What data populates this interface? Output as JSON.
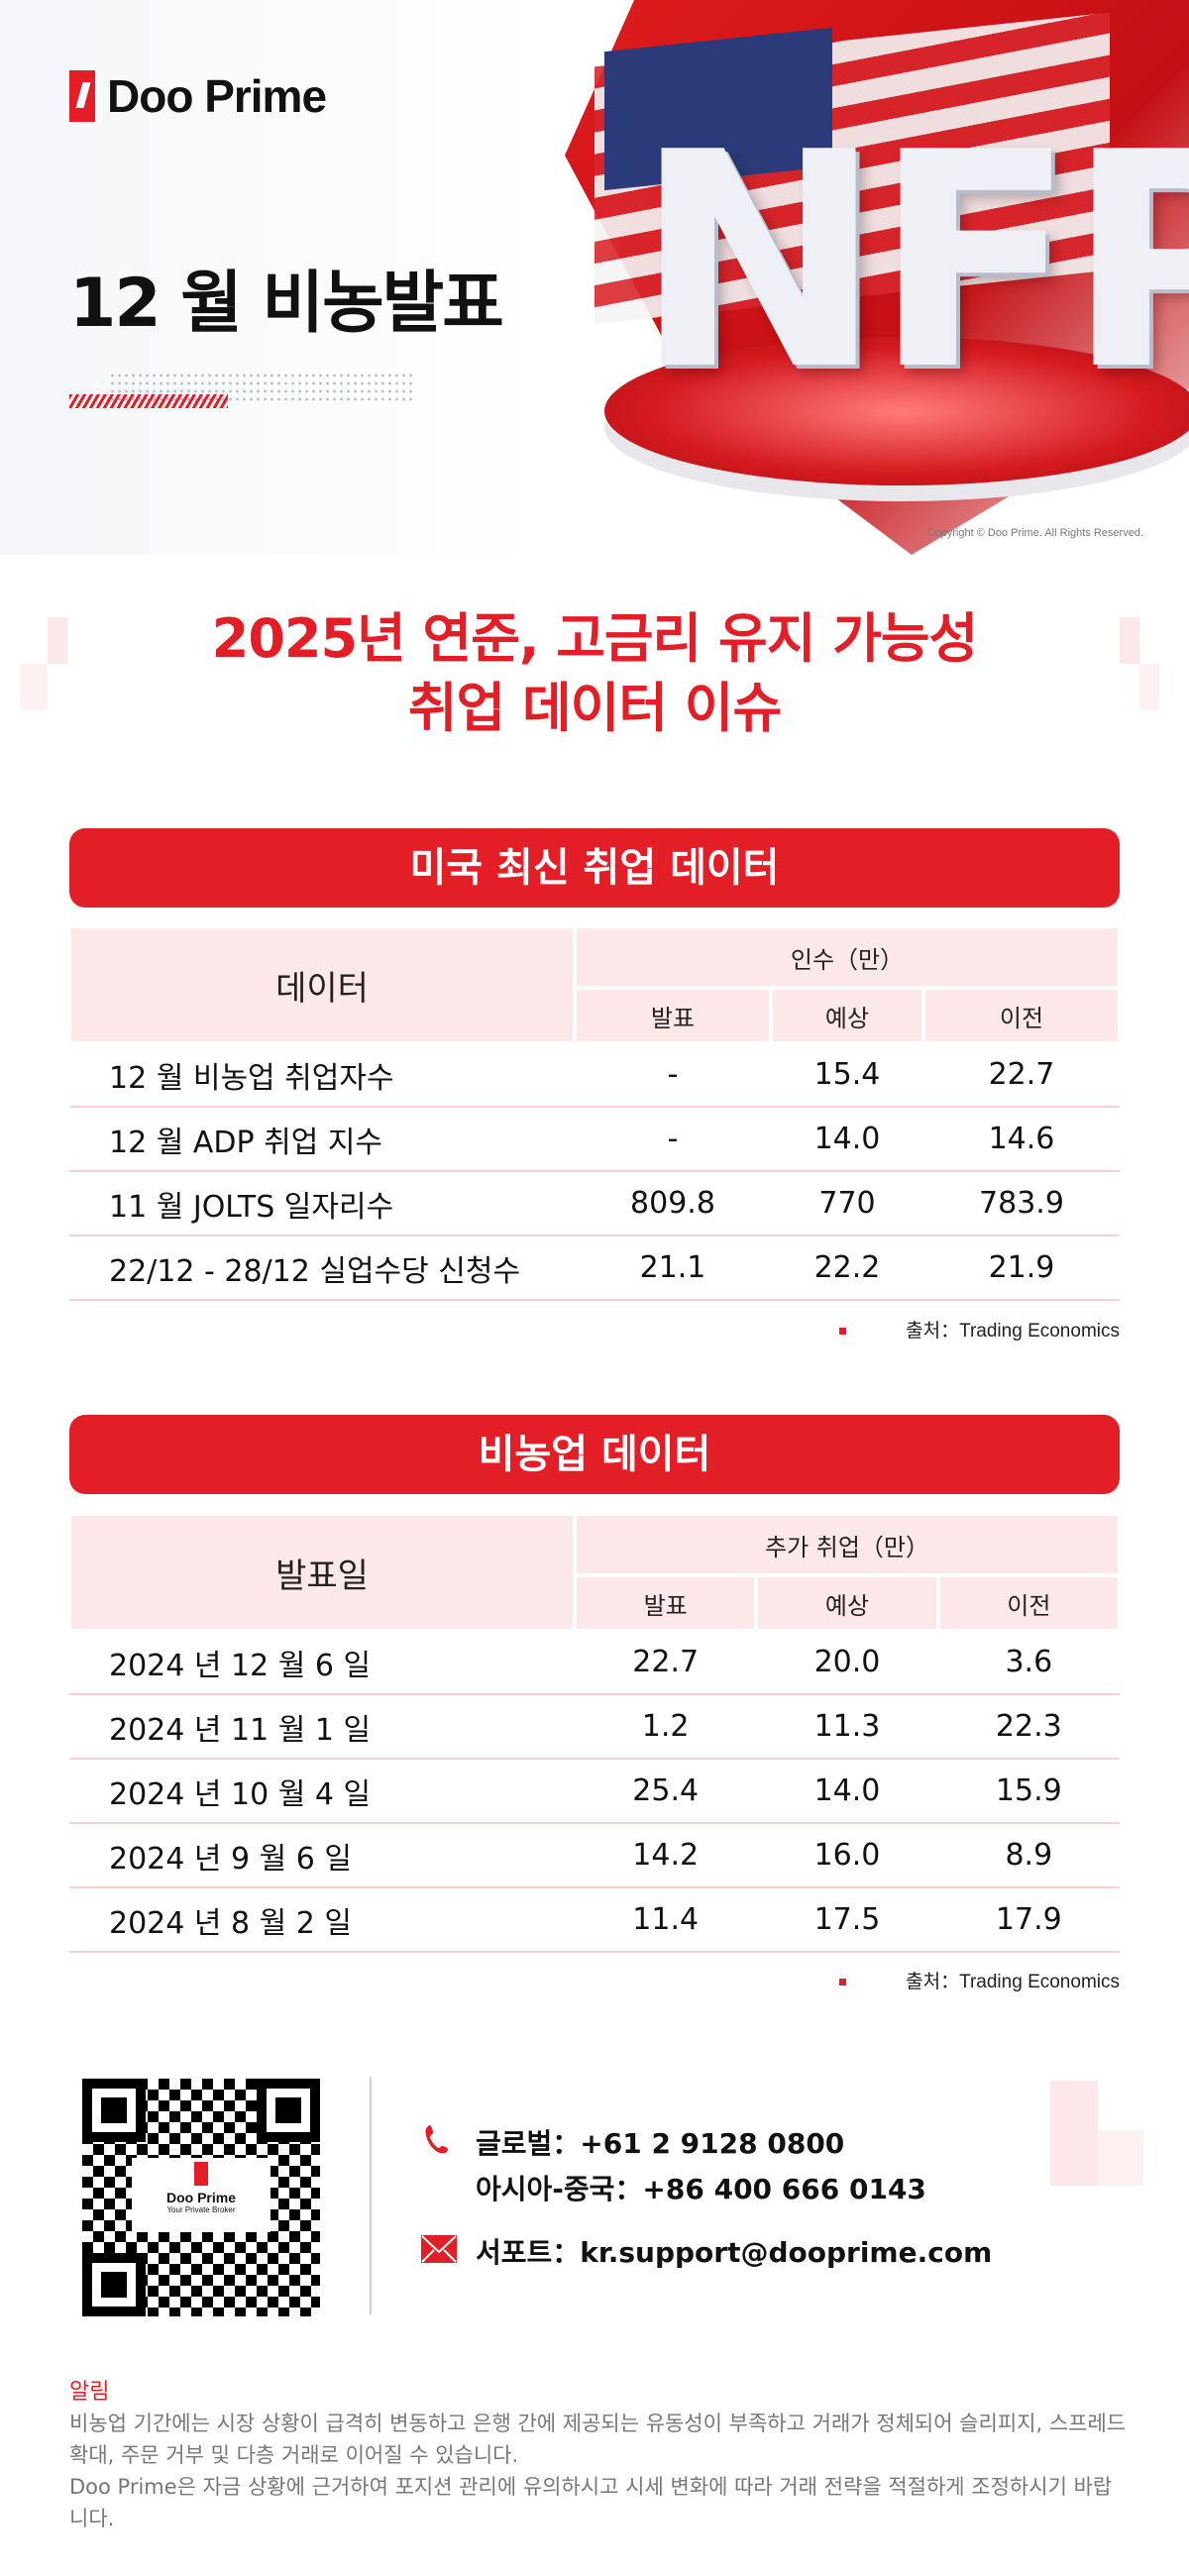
{
  "header": {
    "brand": "Doo Prime",
    "title": "12 월 비농발표",
    "hero_text": "NFP",
    "copyright": "Copyright © Doo Prime. All Rights Reserved."
  },
  "headline": {
    "line1": "2025년 연준, 고금리 유지 가능성",
    "line2": "취업 데이터 이슈"
  },
  "section1": {
    "title": "미국 최신 취업 데이터",
    "col_label": "데이터",
    "group_label": "인수（만）",
    "subcols": [
      "발표",
      "예상",
      "이전"
    ],
    "rows": [
      {
        "label": "12 월 비농업 취업자수",
        "values": [
          "-",
          "15.4",
          "22.7"
        ]
      },
      {
        "label": "12 월 ADP 취업 지수",
        "values": [
          "-",
          "14.0",
          "14.6"
        ]
      },
      {
        "label": "11 월 JOLTS 일자리수",
        "values": [
          "809.8",
          "770",
          "783.9"
        ]
      },
      {
        "label": "22/12 - 28/12 실업수당 신청수",
        "values": [
          "21.1",
          "22.2",
          "21.9"
        ]
      }
    ],
    "source": "출처：Trading Economics"
  },
  "section2": {
    "title": "비농업 데이터",
    "col_label": "발표일",
    "group_label": "추가 취업（만）",
    "subcols": [
      "발표",
      "예상",
      "이전"
    ],
    "rows": [
      {
        "label": "2024 년 12 월 6 일",
        "values": [
          "22.7",
          "20.0",
          "3.6"
        ]
      },
      {
        "label": "2024 년 11 월 1 일",
        "values": [
          "1.2",
          "11.3",
          "22.3"
        ]
      },
      {
        "label": "2024 년 10 월 4 일",
        "values": [
          "25.4",
          "14.0",
          "15.9"
        ]
      },
      {
        "label": "2024 년 9 월 6 일",
        "values": [
          "14.2",
          "16.0",
          "8.9"
        ]
      },
      {
        "label": "2024 년 8 월 2 일",
        "values": [
          "11.4",
          "17.5",
          "17.9"
        ]
      }
    ],
    "source": "출처：Trading Economics"
  },
  "contact": {
    "qr_brand": "Doo Prime",
    "qr_tagline": "Your Private Broker",
    "global": "글로벌：+61 2 9128 0800",
    "asia": "아시아-중국：+86 400 666 0143",
    "support": "서포트：kr.support@dooprime.com",
    "icons": [
      "phone-icon",
      "mail-icon"
    ]
  },
  "notice": {
    "title": "알림",
    "p1": "비농업 기간에는 시장 상황이 급격히 변동하고 은행 간에 제공되는 유동성이 부족하고 거래가 정체되어 슬리피지, 스프레드 확대, 주문 거부 및 다층 거래로 이어질 수 있습니다.",
    "p2": "Doo Prime은 자금 상황에 근거하여 포지션 관리에 유의하시고 시세 변화에 따라 거래 전략을 적절하게 조정하시기 바랍니다."
  },
  "colors": {
    "accent": "#e41e26",
    "header_bg": "#fde8e9",
    "row_line": "#f8cfd2"
  }
}
